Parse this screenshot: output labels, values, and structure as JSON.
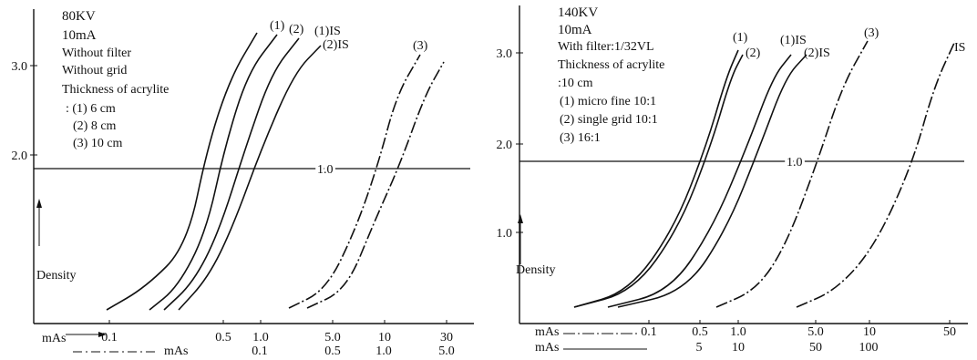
{
  "chart_data": [
    {
      "type": "line",
      "ylabel": "Density",
      "y_ticks": [
        "3.0",
        "2.0"
      ],
      "ylim": [
        0.2,
        3.4
      ],
      "reference_line": {
        "label": "1.0",
        "y": 1.8
      },
      "annotations": [
        "80KV",
        "10mA",
        "Without filter",
        "Without grid",
        "Thickness of acrylite",
        ": (1)  6 cm",
        "(2)  8 cm",
        "(3)  10 cm"
      ],
      "x_axes": [
        {
          "label": "mAs",
          "ticks": [
            {
              "label": "0.1",
              "value": 0.1
            },
            {
              "label": "0.5",
              "value": 0.5
            },
            {
              "label": "1.0",
              "value": 1.0
            },
            {
              "label": "5.0",
              "value": 5.0
            },
            {
              "label": "10",
              "value": 10
            },
            {
              "label": "30",
              "value": 30
            }
          ]
        },
        {
          "label": "mAs",
          "ticks": [
            {
              "label": "0.1",
              "value": 1.0
            },
            {
              "label": "0.5",
              "value": 5.0
            },
            {
              "label": "1.0",
              "value": 10
            },
            {
              "label": "5.0",
              "value": 50
            }
          ]
        }
      ],
      "xlim": [
        0.02,
        40
      ],
      "series": [
        {
          "name": "(1)",
          "style": "solid",
          "x": [
            0.08,
            0.25,
            0.45,
            0.75,
            1.3,
            2.0
          ],
          "y": [
            0.25,
            0.7,
            1.4,
            2.3,
            3.0,
            3.4
          ]
        },
        {
          "name": "(2)",
          "style": "solid",
          "x": [
            0.13,
            0.4,
            0.7,
            1.2,
            2.0,
            3.0
          ],
          "y": [
            0.25,
            0.7,
            1.5,
            2.3,
            3.0,
            3.35
          ]
        },
        {
          "name": "(1)IS",
          "style": "solid",
          "x": [
            0.15,
            0.55,
            1.0,
            1.6,
            2.5,
            3.8
          ],
          "y": [
            0.25,
            0.7,
            1.4,
            2.3,
            3.0,
            3.3
          ]
        },
        {
          "name": "(2)IS",
          "style": "solid",
          "x": [
            0.17,
            0.6,
            1.1,
            1.8,
            2.8,
            4.2
          ],
          "y": [
            0.22,
            0.7,
            1.4,
            2.2,
            2.9,
            3.2
          ]
        },
        {
          "name": "(3)",
          "style": "dash-dot",
          "x": [
            3.0,
            6.0,
            9.0,
            12.0,
            17.0,
            21.0
          ],
          "y": [
            0.25,
            0.6,
            1.2,
            2.0,
            2.8,
            3.2
          ]
        },
        {
          "name": "",
          "style": "dash-dot",
          "x": [
            4.5,
            9.0,
            13.0,
            17.0,
            23.0,
            30.0
          ],
          "y": [
            0.25,
            0.6,
            1.2,
            2.0,
            2.7,
            3.1
          ]
        }
      ]
    },
    {
      "type": "line",
      "ylabel": "Density",
      "y_ticks": [
        "3.0",
        "2.0",
        "1.0"
      ],
      "ylim": [
        0.2,
        3.3
      ],
      "reference_line": {
        "label": "1.0",
        "y": 1.8
      },
      "annotations": [
        "140KV",
        "10mA",
        "With filter:1/32VL",
        "Thickness of acrylite",
        ":10 cm",
        "(1)  micro fine 10:1",
        "(2)  single grid 10:1",
        "(3)  16:1"
      ],
      "x_axes": [
        {
          "label": "mAs",
          "ticks": [
            {
              "label": "0.1",
              "value": 0.1
            },
            {
              "label": "0.5",
              "value": 0.5
            },
            {
              "label": "1.0",
              "value": 1.0
            },
            {
              "label": "5.0",
              "value": 5.0
            },
            {
              "label": "10",
              "value": 10
            },
            {
              "label": "50",
              "value": 50
            }
          ]
        },
        {
          "label": "mAs",
          "ticks": [
            {
              "label": "5",
              "value": 0.5
            },
            {
              "label": "10",
              "value": 1.0
            },
            {
              "label": "50",
              "value": 5.0
            },
            {
              "label": "100",
              "value": 10
            }
          ]
        }
      ],
      "xlim": [
        0.015,
        70
      ],
      "series": [
        {
          "name": "(1)",
          "style": "solid",
          "x": [
            0.04,
            0.15,
            0.27,
            0.37,
            0.48,
            0.58
          ],
          "y": [
            0.22,
            0.6,
            1.3,
            2.0,
            2.7,
            3.05
          ]
        },
        {
          "name": "(2)",
          "style": "solid",
          "x": [
            0.05,
            0.17,
            0.3,
            0.4,
            0.52,
            0.62
          ],
          "y": [
            0.22,
            0.6,
            1.3,
            2.0,
            2.7,
            3.05
          ]
        },
        {
          "name": "(1)IS",
          "style": "solid",
          "x": [
            0.1,
            0.35,
            0.6,
            0.85,
            1.2,
            1.6
          ],
          "y": [
            0.22,
            0.6,
            1.3,
            2.0,
            2.7,
            3.05
          ]
        },
        {
          "name": "(2)IS",
          "style": "solid",
          "x": [
            0.12,
            0.45,
            0.8,
            1.15,
            1.6,
            2.2
          ],
          "y": [
            0.22,
            0.6,
            1.3,
            2.0,
            2.7,
            3.05
          ]
        },
        {
          "name": "(3)",
          "style": "dash-dot",
          "x": [
            1.0,
            2.2,
            3.4,
            4.6,
            6.5,
            9.0
          ],
          "y": [
            0.22,
            0.6,
            1.3,
            2.0,
            2.7,
            3.1
          ]
        },
        {
          "name": "IS",
          "style": "dash-dot",
          "x": [
            3.0,
            10.0,
            16.0,
            22.0,
            32.0,
            48.0
          ],
          "y": [
            0.22,
            0.6,
            1.3,
            2.0,
            2.7,
            3.1
          ]
        }
      ]
    }
  ]
}
